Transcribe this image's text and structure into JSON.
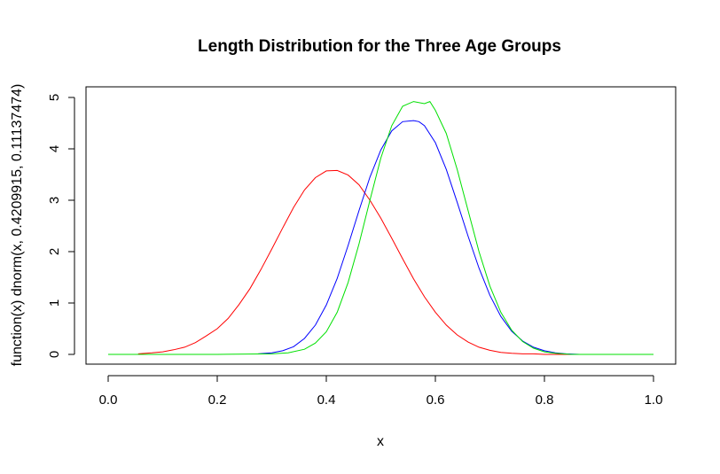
{
  "chart_data": {
    "type": "line",
    "title": "Length Distribution for the Three Age Groups",
    "xlabel": "x",
    "ylabel": "function(x) dnorm(x, 0.4209915, 0.11137474)",
    "xlim": [
      0,
      1
    ],
    "ylim": [
      0,
      5
    ],
    "x_ticks": [
      "0.0",
      "0.2",
      "0.4",
      "0.6",
      "0.8",
      "1.0"
    ],
    "y_ticks": [
      "0",
      "1",
      "2",
      "3",
      "4",
      "5"
    ],
    "grid": false,
    "series": [
      {
        "color": "#ff0000",
        "x": [
          0.055,
          0.08,
          0.1,
          0.12,
          0.14,
          0.16,
          0.18,
          0.2,
          0.22,
          0.24,
          0.26,
          0.28,
          0.3,
          0.32,
          0.34,
          0.36,
          0.38,
          0.4,
          0.42,
          0.44,
          0.46,
          0.48,
          0.5,
          0.52,
          0.54,
          0.56,
          0.58,
          0.6,
          0.62,
          0.64,
          0.66,
          0.68,
          0.7,
          0.72,
          0.74,
          0.76,
          0.78,
          0.8,
          0.82,
          0.84,
          0.865
        ],
        "y": [
          0.01,
          0.03,
          0.05,
          0.09,
          0.14,
          0.23,
          0.36,
          0.5,
          0.7,
          0.97,
          1.28,
          1.65,
          2.05,
          2.46,
          2.86,
          3.2,
          3.44,
          3.57,
          3.58,
          3.49,
          3.3,
          3.0,
          2.65,
          2.26,
          1.86,
          1.47,
          1.12,
          0.82,
          0.57,
          0.38,
          0.24,
          0.14,
          0.08,
          0.04,
          0.02,
          0.01,
          0.01,
          0.0,
          0.0,
          0.0,
          0.0
        ]
      },
      {
        "color": "#0000ff",
        "x": [
          0.275,
          0.3,
          0.32,
          0.34,
          0.36,
          0.38,
          0.4,
          0.42,
          0.44,
          0.46,
          0.48,
          0.5,
          0.52,
          0.54,
          0.56,
          0.57,
          0.58,
          0.6,
          0.62,
          0.64,
          0.66,
          0.68,
          0.7,
          0.72,
          0.74,
          0.76,
          0.78,
          0.8,
          0.82,
          0.84,
          0.865
        ],
        "y": [
          0.01,
          0.03,
          0.07,
          0.15,
          0.31,
          0.57,
          0.96,
          1.48,
          2.12,
          2.8,
          3.45,
          3.98,
          4.35,
          4.53,
          4.55,
          4.53,
          4.45,
          4.12,
          3.6,
          2.96,
          2.3,
          1.68,
          1.15,
          0.74,
          0.45,
          0.26,
          0.14,
          0.07,
          0.03,
          0.01,
          0.0
        ]
      },
      {
        "color": "#00e000",
        "x": [
          0.0,
          0.1,
          0.2,
          0.3,
          0.33,
          0.36,
          0.38,
          0.4,
          0.42,
          0.44,
          0.46,
          0.48,
          0.5,
          0.52,
          0.54,
          0.56,
          0.58,
          0.59,
          0.6,
          0.62,
          0.64,
          0.66,
          0.68,
          0.7,
          0.72,
          0.74,
          0.76,
          0.78,
          0.8,
          0.82,
          0.85,
          0.9,
          1.0
        ],
        "y": [
          0.0,
          0.0,
          0.0,
          0.01,
          0.03,
          0.1,
          0.22,
          0.44,
          0.82,
          1.4,
          2.15,
          3.0,
          3.82,
          4.45,
          4.83,
          4.92,
          4.88,
          4.92,
          4.75,
          4.3,
          3.6,
          2.8,
          2.0,
          1.33,
          0.82,
          0.47,
          0.25,
          0.12,
          0.05,
          0.02,
          0.0,
          0.0,
          0.0
        ]
      }
    ]
  }
}
